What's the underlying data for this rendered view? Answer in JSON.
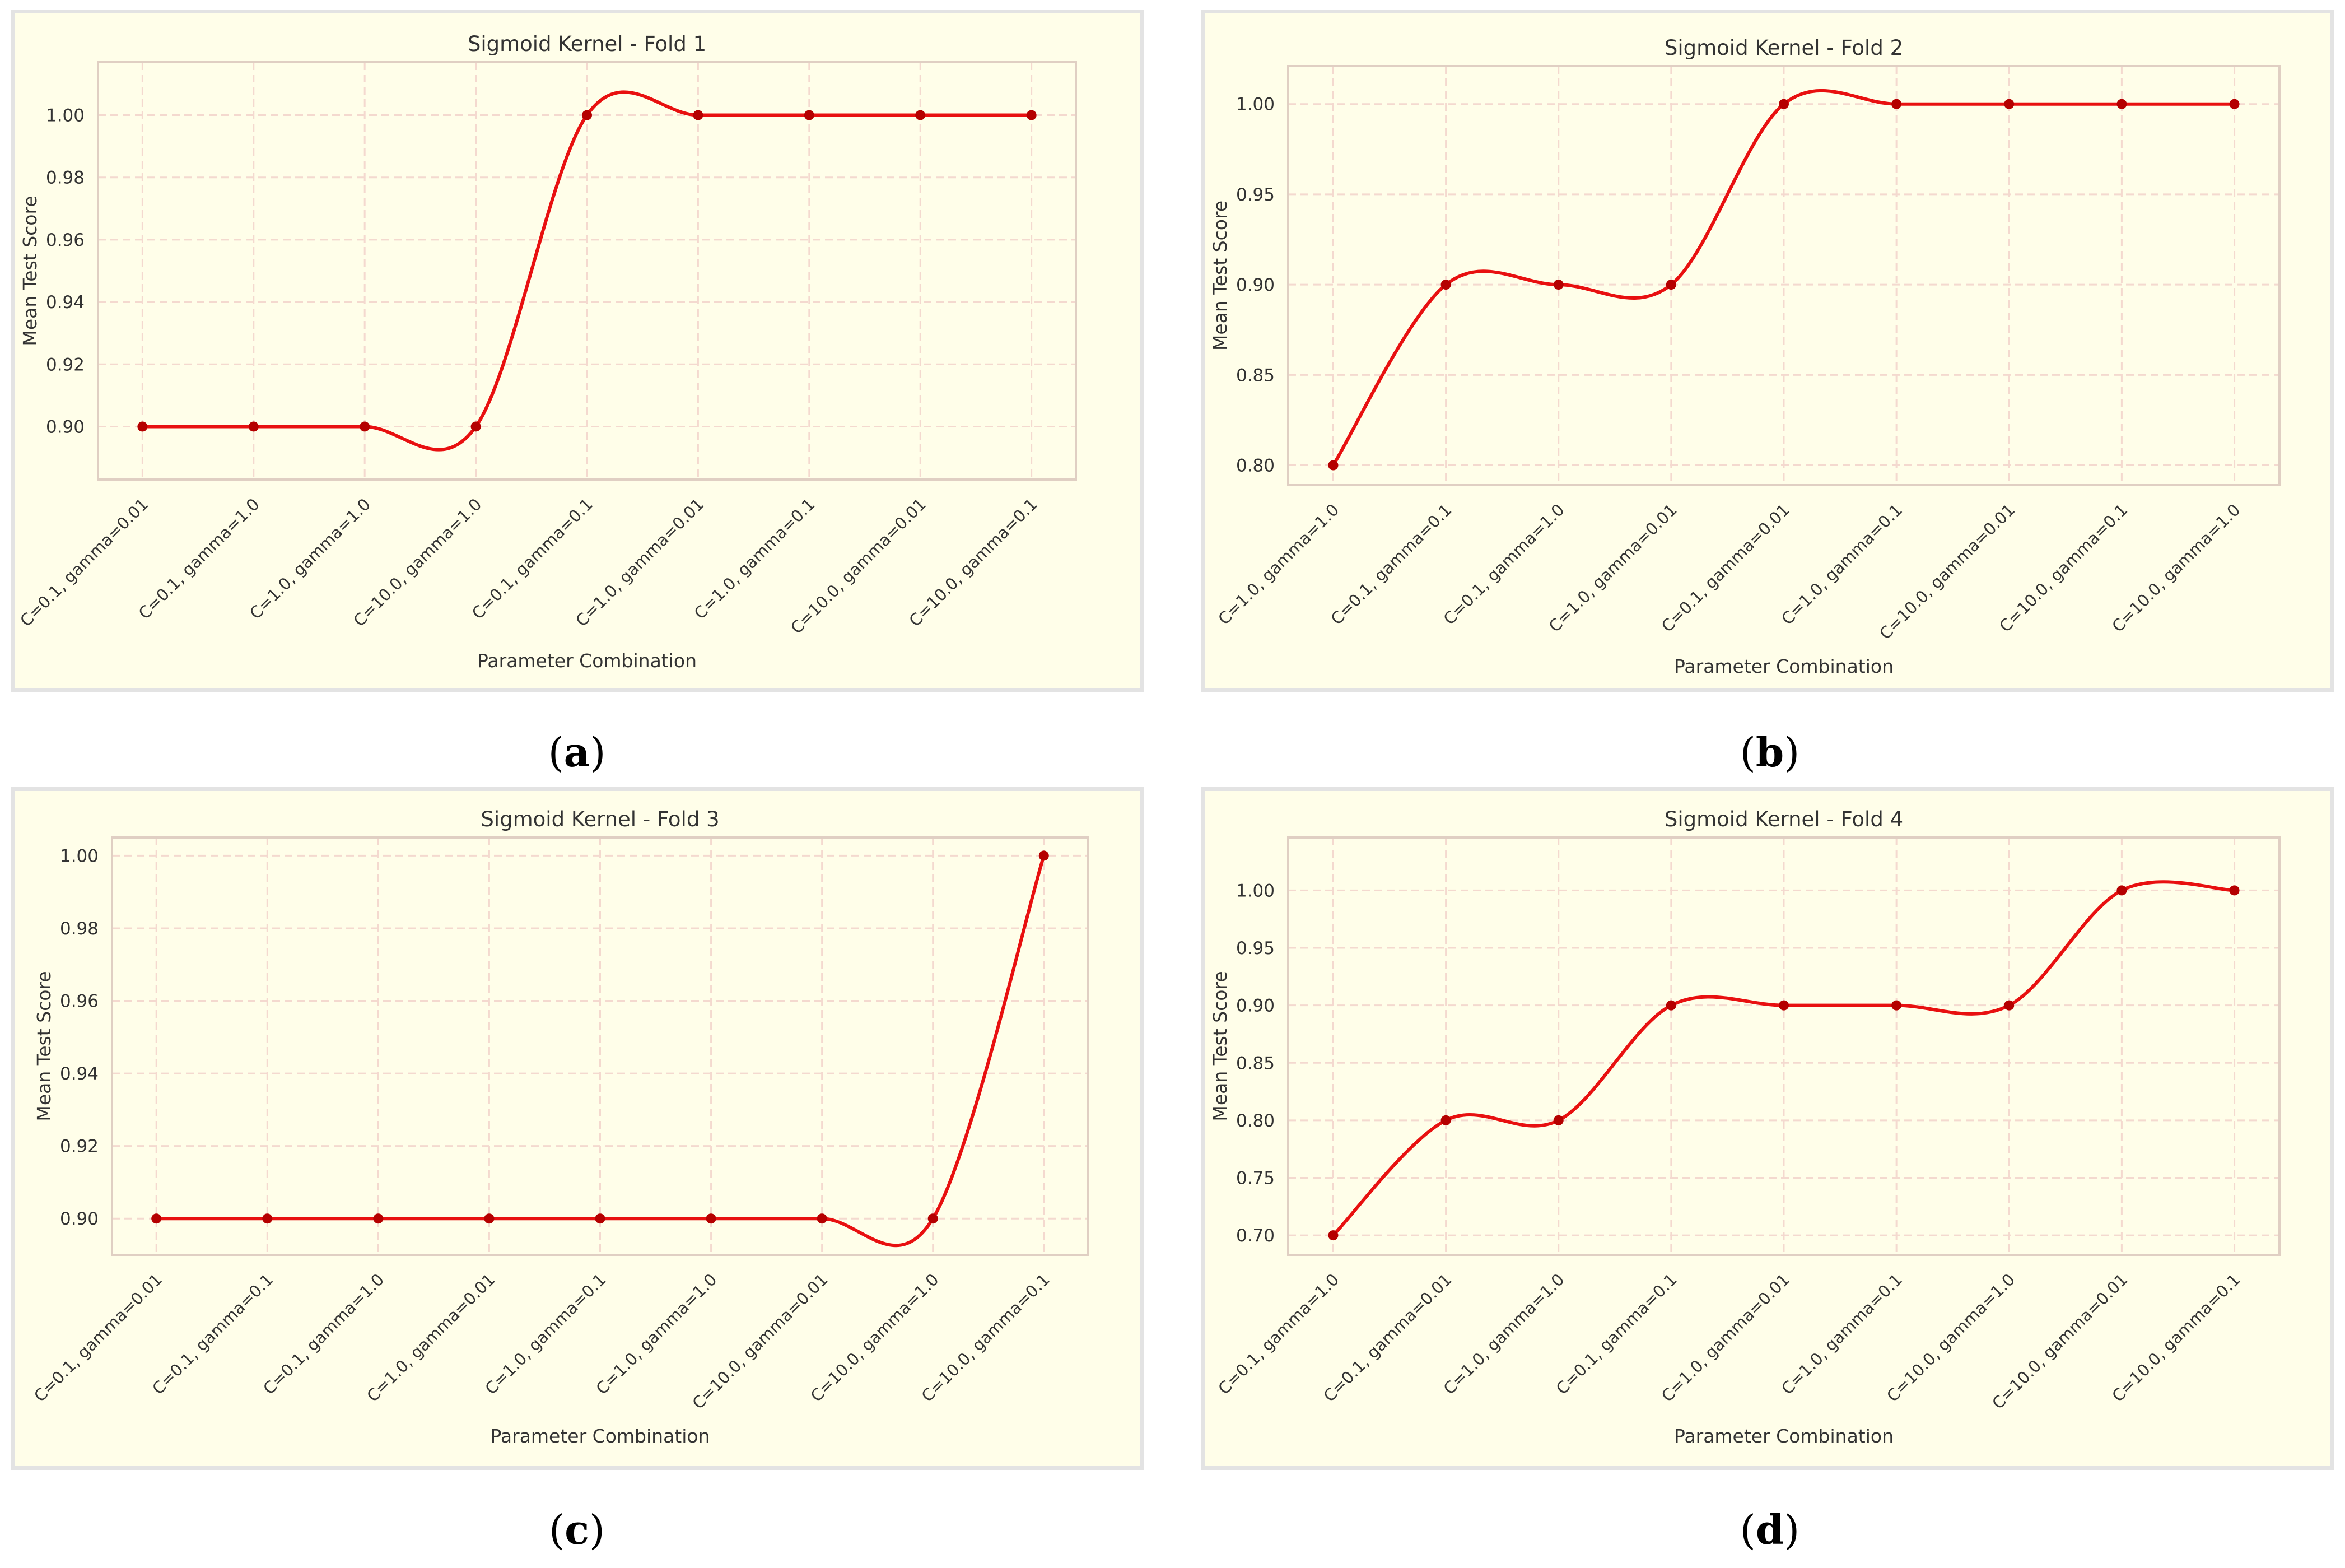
{
  "colors": {
    "panel_bg": "#fffee9",
    "panel_border": "#e3e3e3",
    "axes_border": "#e0cfc3",
    "grid": "#f4d9cf",
    "line": "#e81010",
    "marker": "#b50000",
    "text": "#333333"
  },
  "chart_data": [
    {
      "type": "line",
      "caption": "a",
      "title": "Sigmoid Kernel - Fold 1",
      "xlabel": "Parameter Combination",
      "ylabel": "Mean Test Score",
      "categories": [
        "C=0.1, gamma=0.01",
        "C=0.1, gamma=1.0",
        "C=1.0, gamma=1.0",
        "C=10.0, gamma=1.0",
        "C=0.1, gamma=0.1",
        "C=1.0, gamma=0.01",
        "C=1.0, gamma=0.1",
        "C=10.0, gamma=0.01",
        "C=10.0, gamma=0.1"
      ],
      "values": [
        0.9,
        0.9,
        0.9,
        0.9,
        1.0,
        1.0,
        1.0,
        1.0,
        1.0
      ],
      "ylim": [
        0.883,
        1.017
      ],
      "yticks": [
        0.9,
        0.92,
        0.94,
        0.96,
        0.98,
        1.0
      ],
      "ytick_labels": [
        "0.90",
        "0.92",
        "0.94",
        "0.96",
        "0.98",
        "1.00"
      ],
      "grid": true,
      "smooth": true
    },
    {
      "type": "line",
      "caption": "b",
      "title": "Sigmoid Kernel - Fold 2",
      "xlabel": "Parameter Combination",
      "ylabel": "Mean Test Score",
      "categories": [
        "C=1.0, gamma=1.0",
        "C=0.1, gamma=0.1",
        "C=0.1, gamma=1.0",
        "C=1.0, gamma=0.01",
        "C=0.1, gamma=0.01",
        "C=1.0, gamma=0.1",
        "C=10.0, gamma=0.01",
        "C=10.0, gamma=0.1",
        "C=10.0, gamma=1.0"
      ],
      "values": [
        0.8,
        0.9,
        0.9,
        0.9,
        1.0,
        1.0,
        1.0,
        1.0,
        1.0
      ],
      "ylim": [
        0.789,
        1.021
      ],
      "yticks": [
        0.8,
        0.85,
        0.9,
        0.95,
        1.0
      ],
      "ytick_labels": [
        "0.80",
        "0.85",
        "0.90",
        "0.95",
        "1.00"
      ],
      "grid": true,
      "smooth": true
    },
    {
      "type": "line",
      "caption": "c",
      "title": "Sigmoid Kernel - Fold 3",
      "xlabel": "Parameter Combination",
      "ylabel": "Mean Test Score",
      "categories": [
        "C=0.1, gamma=0.01",
        "C=0.1, gamma=0.1",
        "C=0.1, gamma=1.0",
        "C=1.0, gamma=0.01",
        "C=1.0, gamma=0.1",
        "C=1.0, gamma=1.0",
        "C=10.0, gamma=0.01",
        "C=10.0, gamma=1.0",
        "C=10.0, gamma=0.1"
      ],
      "values": [
        0.9,
        0.9,
        0.9,
        0.9,
        0.9,
        0.9,
        0.9,
        0.9,
        1.0
      ],
      "ylim": [
        0.89,
        1.005
      ],
      "yticks": [
        0.9,
        0.92,
        0.94,
        0.96,
        0.98,
        1.0
      ],
      "ytick_labels": [
        "0.90",
        "0.92",
        "0.94",
        "0.96",
        "0.98",
        "1.00"
      ],
      "grid": true,
      "smooth": true
    },
    {
      "type": "line",
      "caption": "d",
      "title": "Sigmoid Kernel - Fold 4",
      "xlabel": "Parameter Combination",
      "ylabel": "Mean Test Score",
      "categories": [
        "C=0.1, gamma=1.0",
        "C=0.1, gamma=0.01",
        "C=1.0, gamma=1.0",
        "C=0.1, gamma=0.1",
        "C=1.0, gamma=0.01",
        "C=1.0, gamma=0.1",
        "C=10.0, gamma=1.0",
        "C=10.0, gamma=0.01",
        "C=10.0, gamma=0.1"
      ],
      "values": [
        0.7,
        0.8,
        0.8,
        0.9,
        0.9,
        0.9,
        0.9,
        1.0,
        1.0
      ],
      "ylim": [
        0.683,
        1.046
      ],
      "yticks": [
        0.7,
        0.75,
        0.8,
        0.85,
        0.9,
        0.95,
        1.0
      ],
      "ytick_labels": [
        "0.70",
        "0.75",
        "0.80",
        "0.85",
        "0.90",
        "0.95",
        "1.00"
      ],
      "grid": true,
      "smooth": true
    }
  ]
}
